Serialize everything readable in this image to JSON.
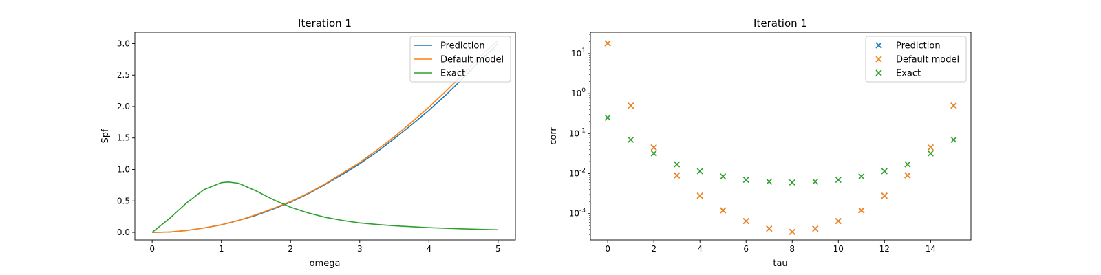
{
  "chart_data": [
    {
      "type": "line",
      "title": "Iteration 1",
      "xlabel": "omega",
      "ylabel": "Spf",
      "xlim": [
        -0.25,
        5.25
      ],
      "ylim": [
        -0.12,
        3.18
      ],
      "xticks": [
        "0",
        "1",
        "2",
        "3",
        "4",
        "5"
      ],
      "yticks": [
        "0.0",
        "0.5",
        "1.0",
        "1.5",
        "2.0",
        "2.5",
        "3.0"
      ],
      "legend": "top-right",
      "grid": false,
      "series": [
        {
          "name": "Prediction",
          "color": "#1f77b4",
          "x": [
            0,
            0.25,
            0.5,
            0.75,
            1,
            1.25,
            1.5,
            1.75,
            2,
            2.25,
            2.5,
            2.75,
            3,
            3.25,
            3.5,
            3.75,
            4,
            4.25,
            4.5,
            4.75,
            5
          ],
          "y": [
            0,
            0.005,
            0.03,
            0.07,
            0.12,
            0.19,
            0.27,
            0.37,
            0.48,
            0.61,
            0.76,
            0.92,
            1.09,
            1.28,
            1.49,
            1.71,
            1.94,
            2.19,
            2.46,
            2.74,
            3.0
          ]
        },
        {
          "name": "Default model",
          "color": "#ff7f0e",
          "x": [
            0,
            0.25,
            0.5,
            0.75,
            1,
            1.25,
            1.5,
            1.75,
            2,
            2.25,
            2.5,
            2.75,
            3,
            3.25,
            3.5,
            3.75,
            4,
            4.25,
            4.5,
            4.75,
            5
          ],
          "y": [
            0,
            0.005,
            0.03,
            0.07,
            0.12,
            0.19,
            0.28,
            0.38,
            0.49,
            0.62,
            0.77,
            0.94,
            1.11,
            1.31,
            1.52,
            1.75,
            1.99,
            2.25,
            2.52,
            2.81,
            3.05
          ]
        },
        {
          "name": "Exact",
          "color": "#2ca02c",
          "x": [
            0,
            0.25,
            0.5,
            0.75,
            1,
            1.1,
            1.25,
            1.5,
            1.75,
            2,
            2.25,
            2.5,
            2.75,
            3,
            3.25,
            3.5,
            3.75,
            4,
            4.25,
            4.5,
            4.75,
            5
          ],
          "y": [
            0,
            0.22,
            0.47,
            0.68,
            0.79,
            0.8,
            0.78,
            0.66,
            0.52,
            0.4,
            0.31,
            0.24,
            0.19,
            0.15,
            0.125,
            0.105,
            0.09,
            0.075,
            0.065,
            0.055,
            0.048,
            0.04
          ]
        }
      ]
    },
    {
      "type": "scatter",
      "title": "Iteration 1",
      "xlabel": "tau",
      "ylabel": "corr",
      "yscale": "log",
      "xlim": [
        -0.75,
        15.75
      ],
      "ylim": [
        0.00022,
        34
      ],
      "xticks": [
        "0",
        "2",
        "4",
        "6",
        "8",
        "10",
        "12",
        "14"
      ],
      "yticks": [
        {
          "base": "10",
          "exp": "-3"
        },
        {
          "base": "10",
          "exp": "-2"
        },
        {
          "base": "10",
          "exp": "-1"
        },
        {
          "base": "10",
          "exp": "0"
        },
        {
          "base": "10",
          "exp": "1"
        }
      ],
      "marker": "x",
      "legend": "top-right",
      "grid": false,
      "series": [
        {
          "name": "Prediction",
          "color": "#1f77b4",
          "x": [
            0,
            1,
            2,
            3,
            4,
            5,
            6,
            7,
            8,
            9,
            10,
            11,
            12,
            13,
            14,
            15
          ],
          "y": [
            18,
            0.5,
            0.045,
            0.009,
            0.0028,
            0.0012,
            0.00065,
            0.00042,
            0.00035,
            0.00042,
            0.00065,
            0.0012,
            0.0028,
            0.009,
            0.045,
            0.5
          ]
        },
        {
          "name": "Default model",
          "color": "#ff7f0e",
          "x": [
            0,
            1,
            2,
            3,
            4,
            5,
            6,
            7,
            8,
            9,
            10,
            11,
            12,
            13,
            14,
            15
          ],
          "y": [
            18,
            0.5,
            0.045,
            0.009,
            0.0028,
            0.0012,
            0.00065,
            0.00042,
            0.00035,
            0.00042,
            0.00065,
            0.0012,
            0.0028,
            0.009,
            0.045,
            0.5
          ]
        },
        {
          "name": "Exact",
          "color": "#2ca02c",
          "x": [
            0,
            1,
            2,
            3,
            4,
            5,
            6,
            7,
            8,
            9,
            10,
            11,
            12,
            13,
            14,
            15
          ],
          "y": [
            0.25,
            0.07,
            0.032,
            0.017,
            0.0115,
            0.0085,
            0.007,
            0.0063,
            0.006,
            0.0063,
            0.007,
            0.0085,
            0.0115,
            0.017,
            0.032,
            0.07
          ]
        }
      ]
    }
  ]
}
